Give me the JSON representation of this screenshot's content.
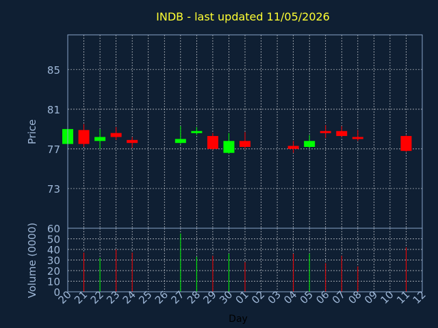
{
  "chart_data": {
    "type": "candlestick",
    "title": "INDB - last updated 11/05/2026",
    "xlabel": "Day",
    "price_ylabel": "Price",
    "volume_ylabel": "Volume (0000)",
    "price_ticks": [
      73,
      77,
      81,
      85
    ],
    "price_ylim": [
      69,
      88.5
    ],
    "volume_ticks": [
      0,
      10,
      20,
      30,
      40,
      50,
      60
    ],
    "volume_ylim": [
      0,
      60
    ],
    "days": [
      "20",
      "21",
      "22",
      "23",
      "24",
      "25",
      "26",
      "27",
      "28",
      "29",
      "30",
      "01",
      "02",
      "03",
      "04",
      "05",
      "06",
      "07",
      "08",
      "09",
      "10",
      "11",
      "12"
    ],
    "candles": [
      {
        "day": "20",
        "open": 77.5,
        "close": 79.0,
        "high": 79.1,
        "low": 77.4,
        "volume": 0
      },
      {
        "day": "21",
        "open": 78.9,
        "close": 77.5,
        "high": 79.5,
        "low": 77.2,
        "volume": 37
      },
      {
        "day": "22",
        "open": 77.8,
        "close": 78.2,
        "high": 79.0,
        "low": 77.0,
        "volume": 32
      },
      {
        "day": "23",
        "open": 78.6,
        "close": 78.2,
        "high": 79.2,
        "low": 77.9,
        "volume": 40
      },
      {
        "day": "24",
        "open": 77.9,
        "close": 77.6,
        "high": 78.2,
        "low": 77.1,
        "volume": 37
      },
      {
        "day": "27",
        "open": 77.6,
        "close": 78.0,
        "high": 79.3,
        "low": 77.5,
        "volume": 55
      },
      {
        "day": "28",
        "open": 78.6,
        "close": 78.8,
        "high": 79.2,
        "low": 78.4,
        "volume": 33
      },
      {
        "day": "29",
        "open": 78.3,
        "close": 77.0,
        "high": 78.6,
        "low": 76.9,
        "volume": 34
      },
      {
        "day": "30",
        "open": 76.6,
        "close": 77.8,
        "high": 78.6,
        "low": 76.5,
        "volume": 36
      },
      {
        "day": "01",
        "open": 77.8,
        "close": 77.2,
        "high": 78.7,
        "low": 77.0,
        "volume": 28
      },
      {
        "day": "04",
        "open": 77.3,
        "close": 77.0,
        "high": 77.8,
        "low": 76.6,
        "volume": 36
      },
      {
        "day": "05",
        "open": 77.2,
        "close": 77.8,
        "high": 78.4,
        "low": 77.1,
        "volume": 36
      },
      {
        "day": "06",
        "open": 78.8,
        "close": 78.6,
        "high": 79.4,
        "low": 78.1,
        "volume": 27
      },
      {
        "day": "07",
        "open": 78.8,
        "close": 78.3,
        "high": 79.3,
        "low": 78.2,
        "volume": 34
      },
      {
        "day": "08",
        "open": 78.2,
        "close": 78.1,
        "high": 78.9,
        "low": 77.8,
        "volume": 24
      },
      {
        "day": "11",
        "open": 78.3,
        "close": 76.8,
        "high": 78.4,
        "low": 76.7,
        "volume": 42
      }
    ],
    "colors": {
      "up": "#00ff00",
      "down": "#ff0000",
      "background": "#0f1f33",
      "title": "#ffff33",
      "text": "#9fb8d8"
    },
    "grid": true
  }
}
